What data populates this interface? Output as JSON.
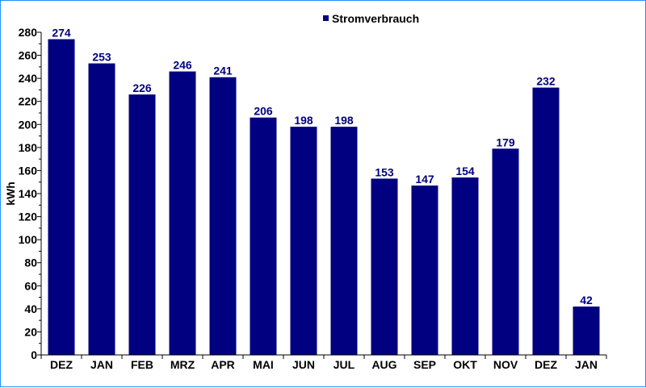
{
  "chart_data": {
    "type": "bar",
    "title": "",
    "xlabel": "",
    "ylabel": "kWh",
    "ylim": [
      0,
      280
    ],
    "ytick_step": 20,
    "grid": false,
    "legend_position": "top-center",
    "categories": [
      "DEZ",
      "JAN",
      "FEB",
      "MRZ",
      "APR",
      "MAI",
      "JUN",
      "JUL",
      "AUG",
      "SEP",
      "OKT",
      "NOV",
      "DEZ",
      "JAN"
    ],
    "series": [
      {
        "name": "Stromverbrauch",
        "color": "#000080",
        "values": [
          274,
          253,
          226,
          246,
          241,
          206,
          198,
          198,
          153,
          147,
          154,
          179,
          232,
          42
        ]
      }
    ]
  }
}
